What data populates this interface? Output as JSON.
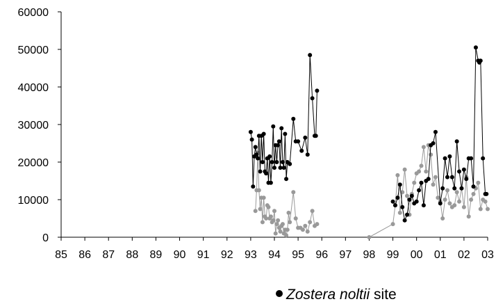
{
  "chart_data": {
    "type": "line",
    "x_tick_labels": [
      "85",
      "86",
      "87",
      "88",
      "89",
      "90",
      "91",
      "92",
      "93",
      "94",
      "95",
      "96",
      "97",
      "98",
      "99",
      "00",
      "01",
      "02",
      "03"
    ],
    "y_ticks": [
      0,
      10000,
      20000,
      30000,
      40000,
      50000,
      60000
    ],
    "y_tick_labels": [
      "0",
      "10000",
      "20000",
      "30000",
      "40000",
      "50000",
      "60000"
    ],
    "xlim": [
      1985,
      2003
    ],
    "ylim": [
      0,
      60000
    ],
    "grid": false,
    "legend_position": "bottom-right",
    "series": [
      {
        "name_parts": [
          "Zostera noltii",
          " site"
        ],
        "color": "#000000",
        "marker": "circle",
        "x": [
          1993.0,
          1993.05,
          1993.1,
          1993.15,
          1993.2,
          1993.25,
          1993.3,
          1993.35,
          1993.4,
          1993.45,
          1993.5,
          1993.55,
          1993.6,
          1993.65,
          1993.7,
          1993.75,
          1993.8,
          1993.85,
          1993.9,
          1993.95,
          1994.0,
          1994.05,
          1994.1,
          1994.15,
          1994.2,
          1994.25,
          1994.3,
          1994.35,
          1994.4,
          1994.45,
          1994.5,
          1994.55,
          1994.65,
          1994.8,
          1994.9,
          1995.0,
          1995.15,
          1995.3,
          1995.4,
          1995.5,
          1995.6,
          1995.7,
          1995.75,
          1995.8,
          1999.0,
          1999.1,
          1999.2,
          1999.3,
          1999.4,
          1999.5,
          1999.6,
          1999.7,
          1999.8,
          1999.9,
          2000.0,
          2000.1,
          2000.2,
          2000.3,
          2000.4,
          2000.5,
          2000.6,
          2000.7,
          2000.8,
          2001.0,
          2001.1,
          2001.2,
          2001.3,
          2001.4,
          2001.5,
          2001.6,
          2001.7,
          2001.8,
          2001.9,
          2002.0,
          2002.1,
          2002.2,
          2002.3,
          2002.4,
          2002.5,
          2002.6,
          2002.65,
          2002.7,
          2002.8,
          2002.9,
          2002.95
        ],
        "y": [
          28000,
          26000,
          13500,
          21500,
          24000,
          22000,
          21000,
          27000,
          17500,
          27000,
          20000,
          27500,
          17500,
          17000,
          21000,
          14500,
          21500,
          14500,
          20000,
          29500,
          18500,
          24500,
          20000,
          24500,
          25500,
          18500,
          29000,
          20000,
          18500,
          27500,
          15500,
          20000,
          19500,
          31500,
          25500,
          25500,
          23000,
          26500,
          22000,
          48500,
          37000,
          27000,
          27000,
          39000,
          9500,
          8500,
          10500,
          14000,
          8000,
          4500,
          6000,
          10000,
          11000,
          9000,
          9500,
          12500,
          14500,
          8500,
          15000,
          15500,
          24500,
          25000,
          28000,
          9000,
          13000,
          21000,
          16000,
          21500,
          16000,
          13000,
          25500,
          17500,
          13000,
          18000,
          15500,
          21000,
          21000,
          13500,
          50500,
          47000,
          46500,
          47000,
          21000,
          11500,
          11500
        ]
      },
      {
        "name_parts": [],
        "color": "#999999",
        "marker": "circle",
        "x": [
          1993.2,
          1993.25,
          1993.3,
          1993.35,
          1993.4,
          1993.45,
          1993.5,
          1993.55,
          1993.6,
          1993.65,
          1993.7,
          1993.75,
          1993.8,
          1993.85,
          1993.9,
          1993.95,
          1994.0,
          1994.05,
          1994.1,
          1994.15,
          1994.2,
          1994.25,
          1994.3,
          1994.35,
          1994.4,
          1994.45,
          1994.5,
          1994.55,
          1994.6,
          1994.65,
          1994.8,
          1994.9,
          1995.0,
          1995.1,
          1995.2,
          1995.3,
          1995.4,
          1995.5,
          1995.6,
          1995.7,
          1995.8,
          1998.0,
          1999.0,
          1999.1,
          1999.2,
          1999.3,
          1999.4,
          1999.5,
          1999.6,
          1999.7,
          1999.8,
          1999.9,
          2000.0,
          2000.1,
          2000.2,
          2000.3,
          2000.4,
          2000.5,
          2000.6,
          2000.7,
          2000.8,
          2000.9,
          2001.0,
          2001.1,
          2001.2,
          2001.3,
          2001.4,
          2001.5,
          2001.6,
          2001.7,
          2001.8,
          2001.9,
          2002.0,
          2002.1,
          2002.2,
          2002.3,
          2002.4,
          2002.5,
          2002.6,
          2002.7,
          2002.8,
          2002.9,
          2003.0
        ],
        "y": [
          7000,
          12500,
          22500,
          12500,
          7500,
          10500,
          4000,
          10500,
          5500,
          5000,
          8500,
          8000,
          5000,
          5500,
          4000,
          4500,
          7000,
          1000,
          3500,
          4500,
          2500,
          1500,
          3000,
          3500,
          1000,
          2000,
          500,
          2000,
          6500,
          4000,
          12000,
          5000,
          2500,
          2500,
          2000,
          3000,
          1500,
          4000,
          7000,
          3000,
          3500,
          0,
          3500,
          8500,
          16500,
          6500,
          12000,
          18000,
          11000,
          6000,
          11500,
          14500,
          17000,
          17500,
          19000,
          24000,
          17500,
          24500,
          22000,
          14000,
          16000,
          10500,
          9500,
          5000,
          10000,
          12500,
          9000,
          8000,
          8500,
          12000,
          9500,
          13000,
          8000,
          16000,
          5500,
          10000,
          11500,
          13000,
          14500,
          7500,
          10000,
          9500,
          7500
        ]
      }
    ]
  }
}
